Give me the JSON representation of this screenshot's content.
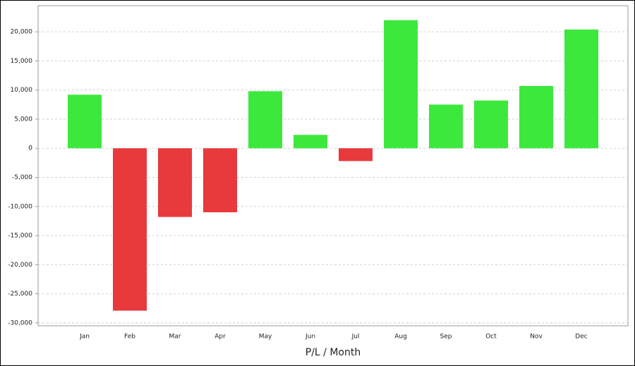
{
  "chart_data": {
    "type": "bar",
    "x_label": "P/L / Month",
    "categories": [
      "Jan",
      "Feb",
      "Mar",
      "Apr",
      "May",
      "Jun",
      "Jul",
      "Aug",
      "Sep",
      "Oct",
      "Nov",
      "Dec"
    ],
    "values": [
      9200,
      -27900,
      -11800,
      -11000,
      9800,
      2300,
      -2200,
      22000,
      7500,
      8200,
      10700,
      20400
    ],
    "positive_color": "#3de83d",
    "negative_color": "#e8393d",
    "ylim": [
      -30500,
      24500
    ],
    "yticks": [
      {
        "value": -30000,
        "label": "-30,000"
      },
      {
        "value": -25000,
        "label": "-25,000"
      },
      {
        "value": -20000,
        "label": "-20,000"
      },
      {
        "value": -15000,
        "label": "-15,000"
      },
      {
        "value": -10000,
        "label": "-10,000"
      },
      {
        "value": -5000,
        "label": "-5,000"
      },
      0,
      {
        "value": 5000,
        "label": "5,000"
      },
      {
        "value": 10000,
        "label": "10,000"
      },
      {
        "value": 15000,
        "label": "15,000"
      },
      {
        "value": 20000,
        "label": "20,000"
      }
    ],
    "grid": true
  }
}
